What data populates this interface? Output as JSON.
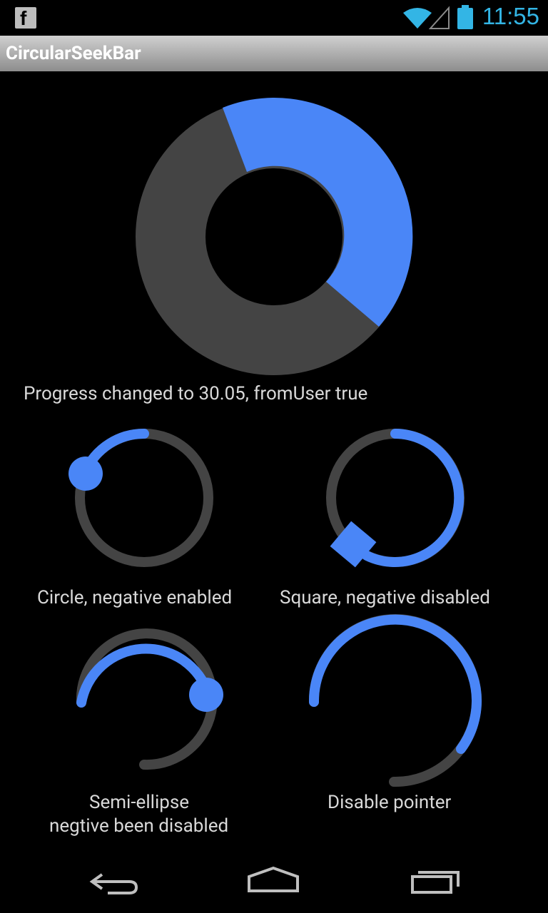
{
  "status_bar": {
    "time": "11:55",
    "notification_icon": "facebook-icon",
    "icons": [
      "wifi-icon",
      "signal-icon",
      "battery-icon"
    ],
    "accent": "#33b5e5"
  },
  "action_bar": {
    "title": "CircularSeekBar"
  },
  "main_seekbar": {
    "progress_fraction": 0.3005,
    "progress_color": "#4a86f7",
    "track_color": "#444444"
  },
  "progress_message": "Progress changed to 30.05, fromUser true",
  "seekbars": [
    {
      "label": "Circle, negative enabled",
      "pointer": "circle"
    },
    {
      "label": "Square, negative disabled",
      "pointer": "square"
    },
    {
      "label_line1": "Semi-ellipse",
      "label_line2": "negtive been disabled",
      "pointer": "circle"
    },
    {
      "label": "Disable pointer",
      "pointer": "none"
    }
  ],
  "nav_bar": {
    "buttons": [
      "back-icon",
      "home-icon",
      "recent-apps-icon"
    ]
  }
}
